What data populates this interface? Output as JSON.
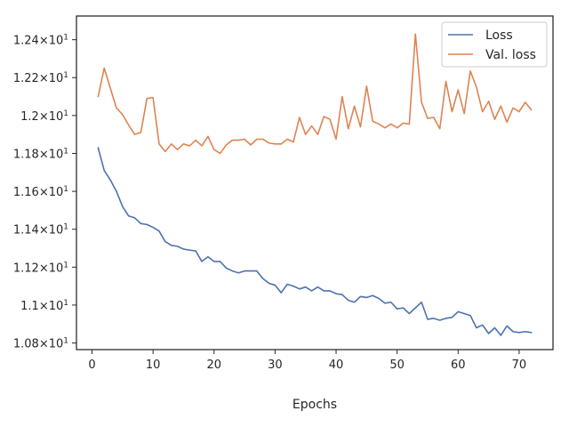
{
  "chart_data": {
    "type": "line",
    "title": "",
    "xlabel": "Epochs",
    "ylabel": "",
    "xlim": [
      -2.55,
      75.55
    ],
    "ylim": [
      10.765,
      12.525
    ],
    "xticks": [
      0,
      10,
      20,
      30,
      40,
      50,
      60,
      70
    ],
    "xtick_labels": [
      "0",
      "10",
      "20",
      "30",
      "40",
      "50",
      "60",
      "70"
    ],
    "yticks": [
      10.8,
      11.0,
      11.2,
      11.4,
      11.6,
      11.8,
      12.0,
      12.2,
      12.4
    ],
    "ytick_labels": [
      {
        "base": "1.08",
        "mult": "×10",
        "exp": "1"
      },
      {
        "base": "1.1",
        "mult": "×10",
        "exp": "1"
      },
      {
        "base": "1.12",
        "mult": "×10",
        "exp": "1"
      },
      {
        "base": "1.14",
        "mult": "×10",
        "exp": "1"
      },
      {
        "base": "1.16",
        "mult": "×10",
        "exp": "1"
      },
      {
        "base": "1.18",
        "mult": "×10",
        "exp": "1"
      },
      {
        "base": "1.2",
        "mult": "×10",
        "exp": "1"
      },
      {
        "base": "1.22",
        "mult": "×10",
        "exp": "1"
      },
      {
        "base": "1.24",
        "mult": "×10",
        "exp": "1"
      }
    ],
    "grid": false,
    "legend_position": "top-right",
    "x": [
      1,
      2,
      3,
      4,
      5,
      6,
      7,
      8,
      9,
      10,
      11,
      12,
      13,
      14,
      15,
      16,
      17,
      18,
      19,
      20,
      21,
      22,
      23,
      24,
      25,
      26,
      27,
      28,
      29,
      30,
      31,
      32,
      33,
      34,
      35,
      36,
      37,
      38,
      39,
      40,
      41,
      42,
      43,
      44,
      45,
      46,
      47,
      48,
      49,
      50,
      51,
      52,
      53,
      54,
      55,
      56,
      57,
      58,
      59,
      60,
      61,
      62,
      63,
      64,
      65,
      66,
      67,
      68,
      69,
      70,
      71,
      72
    ],
    "series": [
      {
        "name": "Loss",
        "color": "#4c72b0",
        "values": [
          11.83,
          11.71,
          11.66,
          11.6,
          11.52,
          11.47,
          11.46,
          11.43,
          11.425,
          11.41,
          11.39,
          11.335,
          11.315,
          11.31,
          11.295,
          11.29,
          11.285,
          11.23,
          11.255,
          11.23,
          11.23,
          11.195,
          11.18,
          11.17,
          11.18,
          11.18,
          11.18,
          11.14,
          11.115,
          11.105,
          11.065,
          11.11,
          11.1,
          11.085,
          11.095,
          11.075,
          11.095,
          11.075,
          11.075,
          11.06,
          11.055,
          11.025,
          11.015,
          11.045,
          11.04,
          11.05,
          11.035,
          11.01,
          11.015,
          10.98,
          10.985,
          10.955,
          10.985,
          11.015,
          10.925,
          10.93,
          10.92,
          10.93,
          10.935,
          10.965,
          10.955,
          10.945,
          10.88,
          10.895,
          10.85,
          10.88,
          10.84,
          10.89,
          10.86,
          10.855,
          10.86,
          10.855
        ]
      },
      {
        "name": "Val. loss",
        "color": "#dd8452",
        "values": [
          12.1,
          12.25,
          12.145,
          12.04,
          12.005,
          11.95,
          11.9,
          11.91,
          12.09,
          12.095,
          11.85,
          11.81,
          11.85,
          11.82,
          11.85,
          11.84,
          11.87,
          11.84,
          11.89,
          11.82,
          11.8,
          11.845,
          11.87,
          11.87,
          11.875,
          11.845,
          11.875,
          11.875,
          11.855,
          11.85,
          11.85,
          11.875,
          11.86,
          11.99,
          11.9,
          11.945,
          11.9,
          11.995,
          11.98,
          11.875,
          12.1,
          11.93,
          12.05,
          11.94,
          12.155,
          11.97,
          11.955,
          11.935,
          11.955,
          11.935,
          11.96,
          11.955,
          12.43,
          12.07,
          11.985,
          11.99,
          11.93,
          12.18,
          12.02,
          12.135,
          12.01,
          12.235,
          12.15,
          12.02,
          12.075,
          11.98,
          12.05,
          11.965,
          12.04,
          12.02,
          12.07,
          12.03
        ]
      }
    ]
  }
}
